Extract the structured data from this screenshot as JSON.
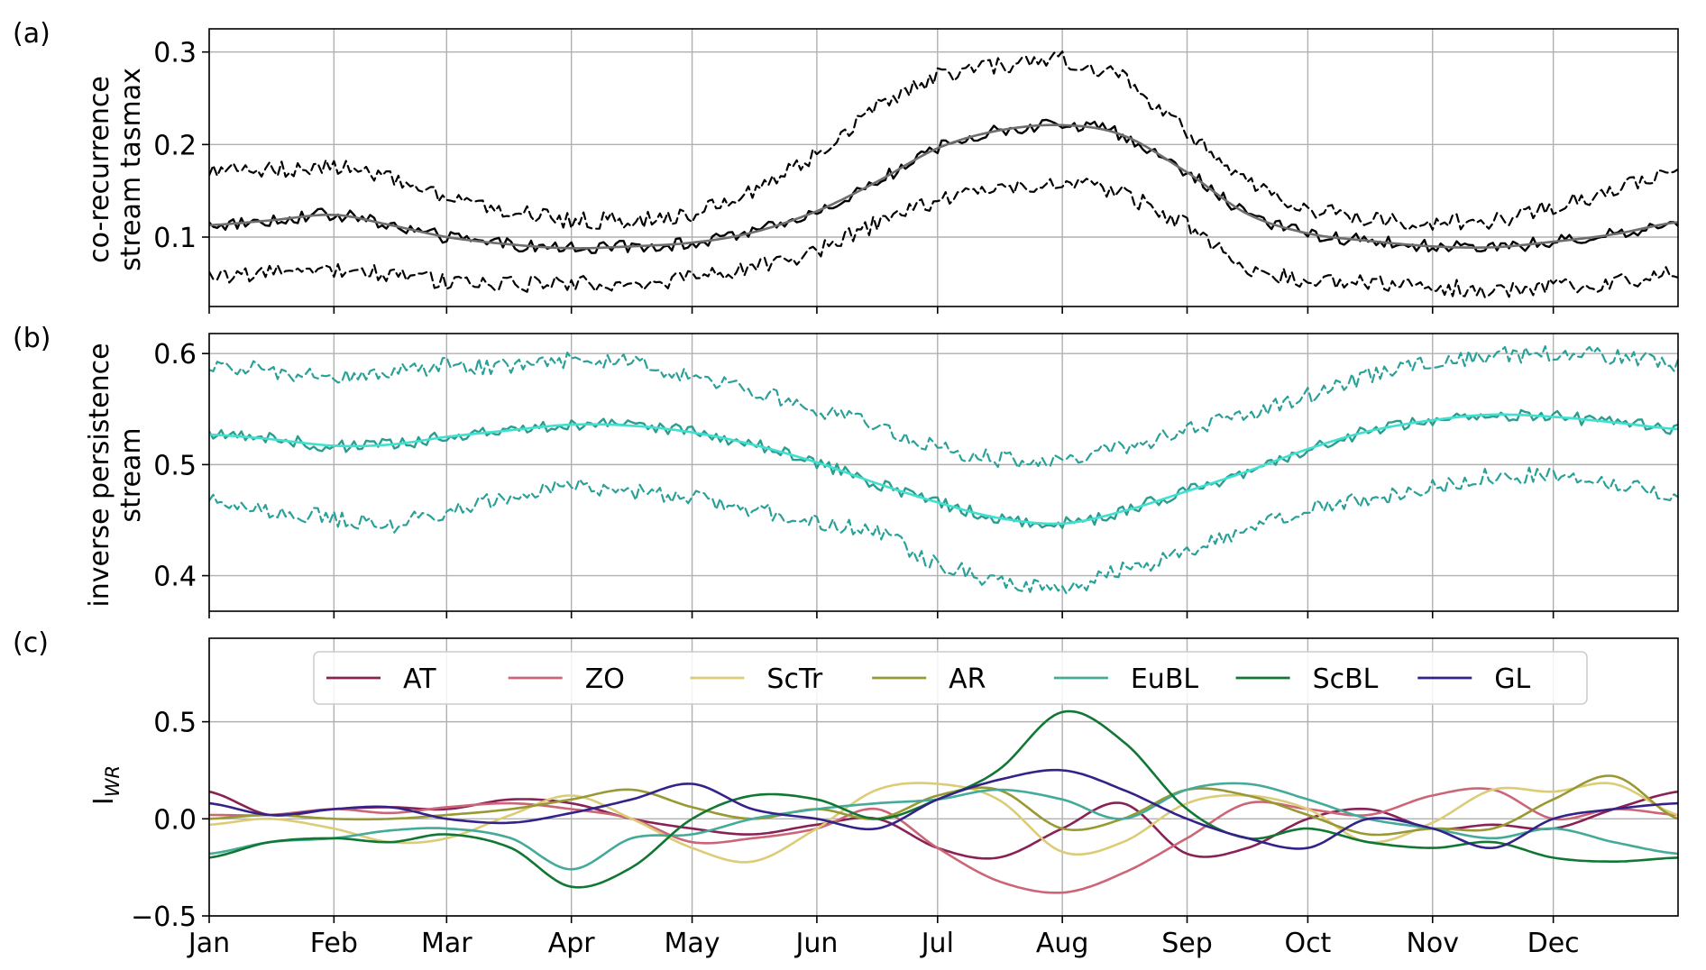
{
  "chart_data": [
    {
      "panel": "(a)",
      "type": "line",
      "ylabel_lines": [
        "co-recurrence",
        "stream tasmax"
      ],
      "ylim": [
        0.025,
        0.325
      ],
      "yticks": [
        0.1,
        0.2,
        0.3
      ],
      "ytick_labels": [
        "0.1",
        "0.2",
        "0.3"
      ],
      "xlim": [
        0,
        365
      ],
      "grid": true,
      "colors": {
        "daily": "#000000",
        "smooth": "#6e6e6e",
        "bounds": "#000000"
      },
      "anchors": {
        "doy": [
          0,
          15,
          31,
          45,
          59,
          75,
          90,
          105,
          120,
          135,
          151,
          166,
          181,
          196,
          212,
          227,
          243,
          258,
          273,
          288,
          304,
          319,
          334,
          349,
          365
        ],
        "smooth": [
          0.113,
          0.118,
          0.124,
          0.113,
          0.1,
          0.092,
          0.088,
          0.09,
          0.094,
          0.105,
          0.128,
          0.16,
          0.196,
          0.215,
          0.221,
          0.21,
          0.17,
          0.125,
          0.104,
          0.096,
          0.09,
          0.089,
          0.095,
          0.103,
          0.116
        ],
        "upper": [
          0.172,
          0.172,
          0.178,
          0.162,
          0.142,
          0.128,
          0.118,
          0.118,
          0.124,
          0.15,
          0.19,
          0.24,
          0.275,
          0.285,
          0.293,
          0.272,
          0.215,
          0.16,
          0.13,
          0.12,
          0.115,
          0.118,
          0.132,
          0.15,
          0.178
        ],
        "lower": [
          0.058,
          0.06,
          0.066,
          0.06,
          0.052,
          0.05,
          0.049,
          0.05,
          0.055,
          0.065,
          0.085,
          0.115,
          0.14,
          0.152,
          0.158,
          0.148,
          0.112,
          0.065,
          0.052,
          0.05,
          0.046,
          0.043,
          0.046,
          0.05,
          0.062
        ]
      }
    },
    {
      "panel": "(b)",
      "type": "line",
      "ylabel_lines": [
        "inverse persistence",
        "stream"
      ],
      "ylim": [
        0.368,
        0.618
      ],
      "yticks": [
        0.4,
        0.5,
        0.6
      ],
      "ytick_labels": [
        "0.4",
        "0.5",
        "0.6"
      ],
      "xlim": [
        0,
        365
      ],
      "grid": true,
      "colors": {
        "daily": "#2a9d8f",
        "smooth": "#40e0d0",
        "bounds": "#2aa198"
      },
      "anchors": {
        "doy": [
          0,
          15,
          31,
          45,
          59,
          75,
          90,
          105,
          120,
          135,
          151,
          166,
          181,
          196,
          212,
          227,
          243,
          258,
          273,
          288,
          304,
          319,
          334,
          349,
          365
        ],
        "smooth": [
          0.527,
          0.523,
          0.517,
          0.518,
          0.525,
          0.531,
          0.536,
          0.535,
          0.529,
          0.518,
          0.502,
          0.483,
          0.466,
          0.452,
          0.447,
          0.458,
          0.476,
          0.494,
          0.514,
          0.53,
          0.54,
          0.545,
          0.543,
          0.538,
          0.532
        ],
        "upper": [
          0.59,
          0.585,
          0.578,
          0.583,
          0.59,
          0.588,
          0.595,
          0.592,
          0.578,
          0.568,
          0.55,
          0.535,
          0.515,
          0.505,
          0.503,
          0.515,
          0.53,
          0.545,
          0.562,
          0.58,
          0.592,
          0.598,
          0.6,
          0.598,
          0.59
        ],
        "lower": [
          0.468,
          0.458,
          0.452,
          0.445,
          0.458,
          0.472,
          0.48,
          0.475,
          0.47,
          0.46,
          0.448,
          0.44,
          0.41,
          0.395,
          0.385,
          0.405,
          0.42,
          0.442,
          0.462,
          0.468,
          0.48,
          0.49,
          0.49,
          0.485,
          0.472
        ]
      }
    },
    {
      "panel": "(c)",
      "type": "line",
      "ylabel_main": "I",
      "ylabel_sub": "WR",
      "ylim": [
        -0.5,
        0.93
      ],
      "yticks": [
        -0.5,
        0.0,
        0.5
      ],
      "ytick_labels": [
        "−0.5",
        "0.0",
        "0.5"
      ],
      "xlim": [
        0,
        365
      ],
      "grid": true,
      "legend_position": "top",
      "doy": [
        0,
        15,
        31,
        45,
        59,
        75,
        90,
        105,
        120,
        135,
        151,
        166,
        181,
        196,
        212,
        227,
        243,
        258,
        273,
        288,
        304,
        319,
        334,
        349,
        365
      ],
      "series": [
        {
          "name": "AT",
          "color": "#882255",
          "values": [
            0.14,
            0.02,
            0.05,
            0.06,
            0.05,
            0.1,
            0.08,
            0.0,
            -0.05,
            -0.08,
            -0.03,
            0.0,
            -0.15,
            -0.2,
            -0.05,
            0.08,
            -0.18,
            -0.15,
            0.0,
            0.05,
            -0.05,
            -0.03,
            -0.05,
            0.05,
            0.14
          ]
        },
        {
          "name": "ZO",
          "color": "#cc6677",
          "values": [
            0.02,
            0.02,
            0.05,
            0.03,
            0.06,
            0.08,
            0.05,
            0.0,
            -0.12,
            -0.1,
            -0.05,
            0.05,
            -0.15,
            -0.32,
            -0.38,
            -0.28,
            -0.1,
            0.08,
            0.05,
            0.02,
            0.12,
            0.15,
            0.0,
            0.05,
            0.02
          ]
        },
        {
          "name": "ScTr",
          "color": "#ddcc77",
          "values": [
            -0.03,
            0.0,
            -0.05,
            -0.12,
            -0.1,
            0.02,
            0.12,
            0.0,
            -0.15,
            -0.22,
            -0.05,
            0.15,
            0.18,
            0.1,
            -0.17,
            -0.12,
            0.08,
            0.12,
            0.05,
            -0.12,
            -0.02,
            0.15,
            0.14,
            0.18,
            0.02
          ]
        },
        {
          "name": "AR",
          "color": "#999933",
          "values": [
            0.0,
            0.02,
            0.0,
            0.0,
            0.02,
            0.05,
            0.1,
            0.15,
            0.06,
            0.0,
            0.05,
            0.0,
            0.12,
            0.15,
            -0.05,
            0.0,
            0.15,
            0.12,
            0.02,
            -0.08,
            -0.05,
            -0.05,
            0.1,
            0.22,
            0.0
          ]
        },
        {
          "name": "EuBL",
          "color": "#44aa99",
          "values": [
            -0.18,
            -0.12,
            -0.1,
            -0.06,
            -0.05,
            -0.1,
            -0.26,
            -0.1,
            -0.08,
            0.0,
            0.05,
            0.08,
            0.1,
            0.15,
            0.1,
            0.0,
            0.15,
            0.18,
            0.1,
            0.0,
            -0.05,
            -0.1,
            -0.05,
            -0.12,
            -0.18
          ]
        },
        {
          "name": "ScBL",
          "color": "#117733",
          "values": [
            -0.2,
            -0.12,
            -0.1,
            -0.12,
            -0.08,
            -0.15,
            -0.35,
            -0.25,
            0.0,
            0.12,
            0.1,
            0.0,
            0.1,
            0.25,
            0.55,
            0.4,
            0.05,
            -0.1,
            -0.05,
            -0.12,
            -0.15,
            -0.12,
            -0.2,
            -0.22,
            -0.2
          ]
        },
        {
          "name": "GL",
          "color": "#332288",
          "values": [
            0.08,
            0.02,
            0.05,
            0.06,
            0.0,
            -0.02,
            0.03,
            0.1,
            0.18,
            0.05,
            0.0,
            -0.05,
            0.1,
            0.2,
            0.25,
            0.15,
            0.0,
            -0.1,
            -0.15,
            0.0,
            -0.05,
            -0.15,
            0.0,
            0.05,
            0.08
          ]
        }
      ]
    }
  ],
  "x_axis": {
    "month_labels": [
      "Jan",
      "Feb",
      "Mar",
      "Apr",
      "May",
      "Jun",
      "Jul",
      "Aug",
      "Sep",
      "Oct",
      "Nov",
      "Dec"
    ],
    "month_starts": [
      0,
      31,
      59,
      90,
      120,
      151,
      181,
      212,
      243,
      273,
      304,
      334
    ]
  }
}
